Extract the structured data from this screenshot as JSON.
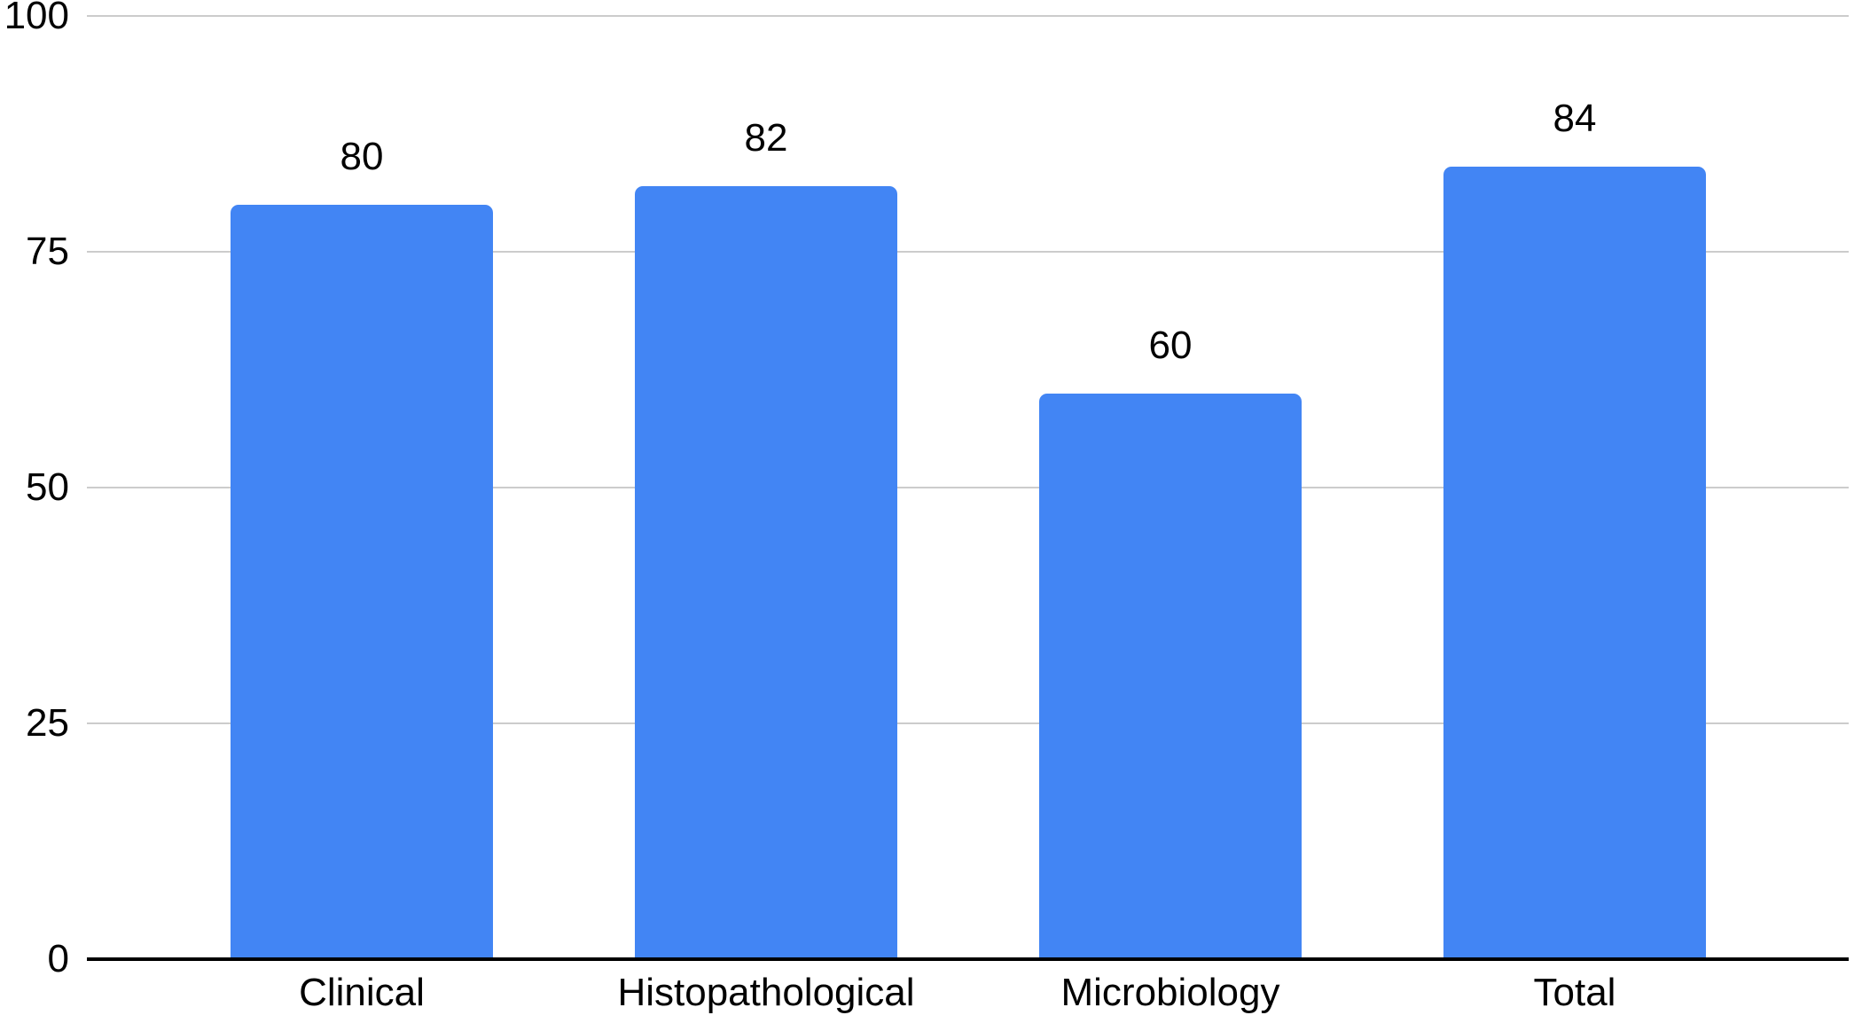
{
  "chart_data": {
    "type": "bar",
    "categories": [
      "Clinical",
      "Histopathological",
      "Microbiology",
      "Total"
    ],
    "values": [
      80,
      82,
      60,
      84
    ],
    "data_labels": [
      "80",
      "82",
      "60",
      "84"
    ],
    "title": "",
    "xlabel": "",
    "ylabel": "",
    "ylim": [
      0,
      100
    ],
    "yticks": [
      0,
      25,
      50,
      75,
      100
    ],
    "ytick_labels": [
      "0",
      "25",
      "50",
      "75",
      "100"
    ],
    "grid": true,
    "legend": "none",
    "bar_color": "#4285F4",
    "gridline_color": "#cccccc",
    "axis_line_color": "#000000",
    "text_color": "#000000",
    "background_color": "#ffffff"
  }
}
